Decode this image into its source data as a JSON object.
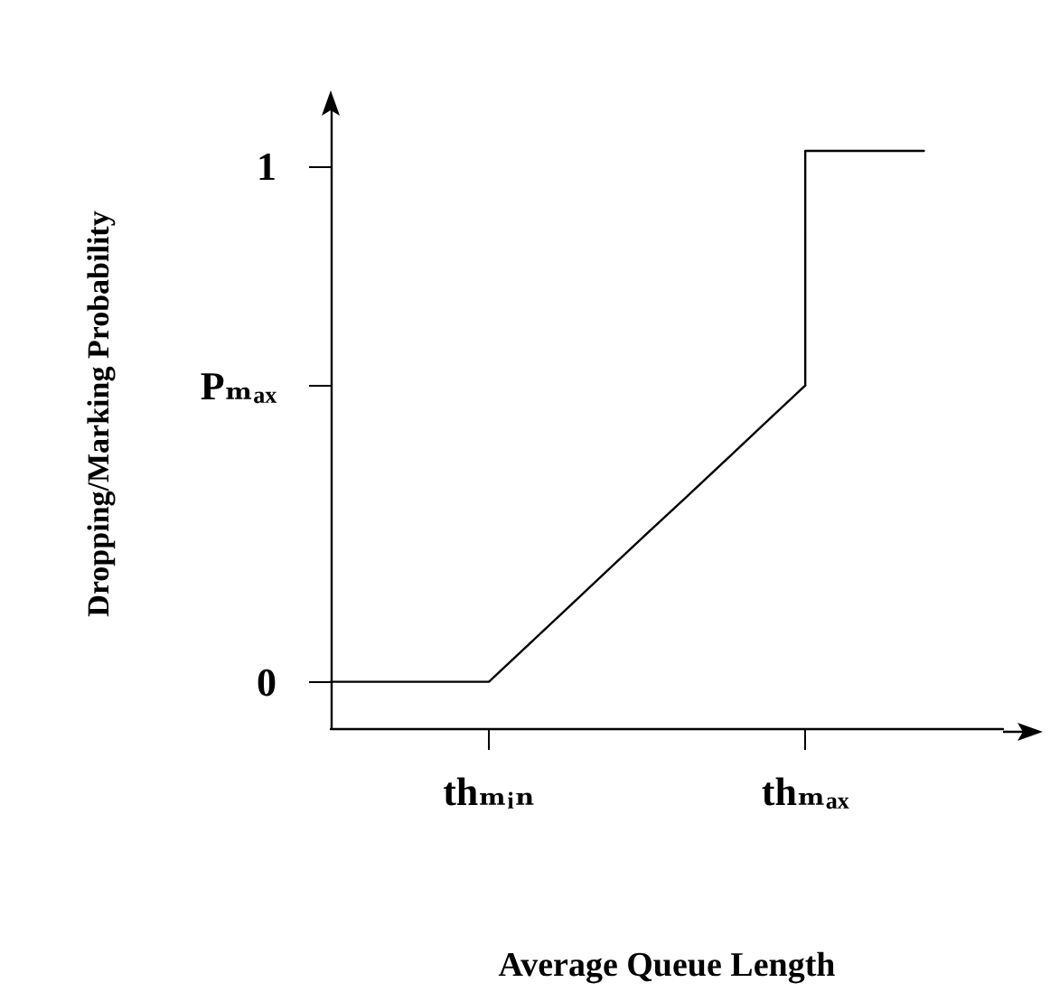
{
  "chart_data": {
    "type": "line",
    "xlabel": "Average Queue Length",
    "ylabel": "Dropping/Marking Probability",
    "categories": [
      null,
      null,
      null,
      null,
      "thₘᵢₙ",
      null,
      null,
      null,
      null,
      null,
      null,
      null,
      "thₘₐₓ",
      null,
      null,
      null,
      null,
      null
    ],
    "series": [
      {
        "color": "#000000",
        "values": [
          0,
          0,
          0,
          0,
          0,
          0.072,
          0.144,
          0.216,
          0.288,
          0.359,
          0.431,
          0.503,
          0.575,
          null,
          null,
          null,
          null,
          null
        ]
      },
      {
        "type": "step",
        "color": "#000000",
        "values": [
          null,
          null,
          null,
          null,
          null,
          null,
          null,
          null,
          null,
          null,
          null,
          null,
          0.575,
          1.03,
          1.03,
          1.03,
          null,
          null
        ]
      }
    ],
    "ylim": [
      -0.09,
      1.13
    ],
    "yticks": [
      0,
      {
        "value": 0.575,
        "label": "Pₘₐₓ"
      },
      1
    ],
    "grid": false,
    "marker": "none",
    "line_style": "solid"
  }
}
